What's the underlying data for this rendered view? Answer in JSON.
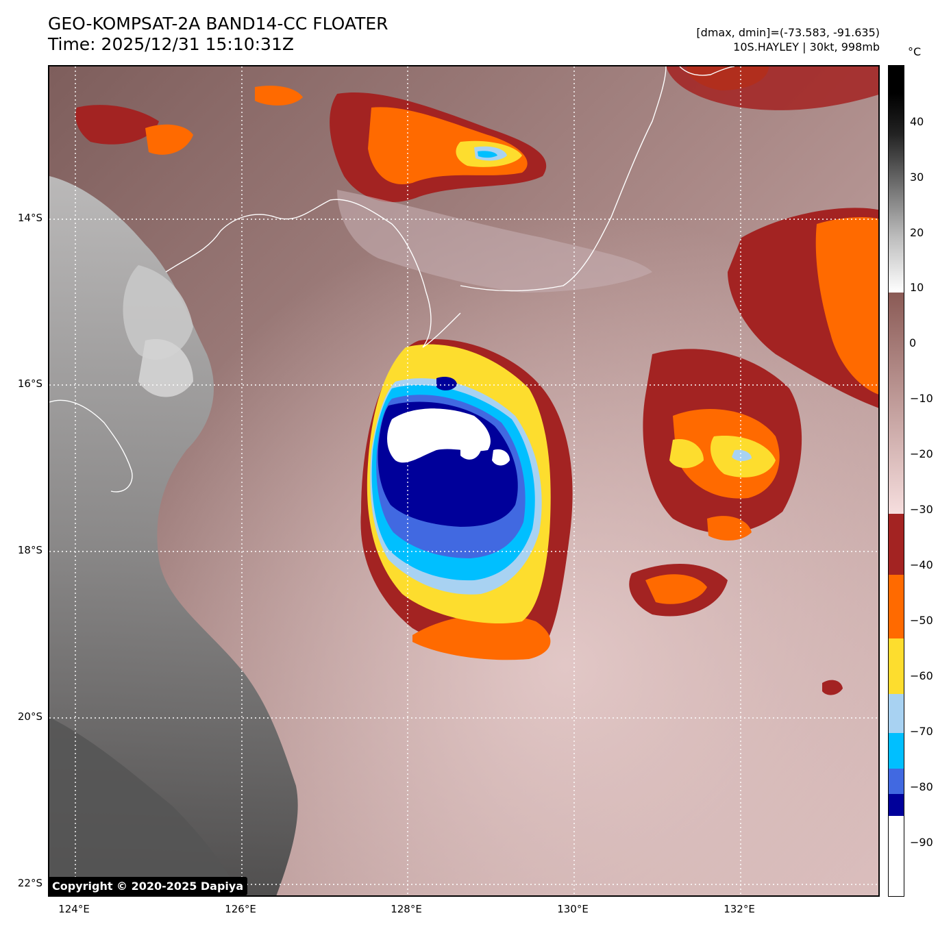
{
  "header": {
    "title_line1": "GEO-KOMPSAT-2A BAND14-CC FLOATER",
    "title_line2": "Time: 2025/12/31 15:10:31Z",
    "meta_line1": "[dmax, dmin]=(-73.583, -91.635)",
    "meta_line2": "10S.HAYLEY | 30kt, 998mb"
  },
  "map": {
    "lat_labels": [
      "14°S",
      "16°S",
      "18°S",
      "20°S",
      "22°S"
    ],
    "lon_labels": [
      "124°E",
      "126°E",
      "128°E",
      "130°E",
      "132°E"
    ],
    "copyright": "Copyright © 2020-2025 Dapiya"
  },
  "colorbar": {
    "unit": "°C",
    "tick_labels": [
      "40",
      "30",
      "20",
      "10",
      "0",
      "−10",
      "−20",
      "−30",
      "−40",
      "−50",
      "−60",
      "−70",
      "−80",
      "−90"
    ],
    "range_c": [
      -100,
      50
    ],
    "bands": [
      {
        "from": 50,
        "to": 9,
        "style": "gray-gradient"
      },
      {
        "from": 9,
        "to": -31,
        "color_top": "#8a5a55",
        "color_bottom": "#f6dede"
      },
      {
        "from": -31,
        "to": -42,
        "color": "#a32322"
      },
      {
        "from": -42,
        "to": -53.5,
        "color": "#ff6a00"
      },
      {
        "from": -53.5,
        "to": -63.5,
        "color": "#fddd2e"
      },
      {
        "from": -63.5,
        "to": -70.5,
        "color": "#a8d2f2"
      },
      {
        "from": -70.5,
        "to": -77,
        "color": "#00bfff"
      },
      {
        "from": -77,
        "to": -81.5,
        "color": "#4169e1"
      },
      {
        "from": -81.5,
        "to": -85.5,
        "color": "#00009a"
      },
      {
        "from": -85.5,
        "to": -100,
        "color": "#ffffff"
      }
    ]
  },
  "colors": {
    "cold_ring": "#a32322",
    "orange": "#ff6a00",
    "yellow": "#fddd2e",
    "light_blue": "#a8d2f2",
    "cyan": "#00bfff",
    "royal_blue": "#4169e1",
    "navy": "#00009a",
    "core_white": "#ffffff"
  }
}
